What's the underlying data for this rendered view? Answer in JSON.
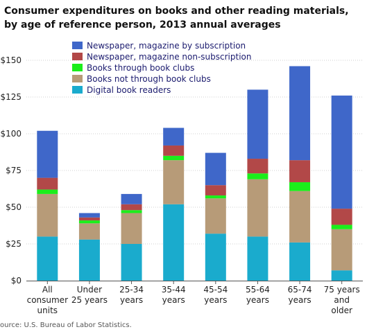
{
  "chart_data": {
    "type": "bar",
    "stacked": true,
    "title": "Consumer expenditures on books and other reading materials, by age of reference person, 2013 annual averages",
    "xlabel": "",
    "ylabel": "",
    "ylim": [
      0,
      150
    ],
    "y_ticks": [
      "$0",
      "$25",
      "$50",
      "$75",
      "$100",
      "$125",
      "$150"
    ],
    "y_tick_values": [
      0,
      25,
      50,
      75,
      100,
      125,
      150
    ],
    "grid": true,
    "legend_position": "top-left",
    "categories": [
      [
        "All",
        "consumer",
        "units"
      ],
      [
        "Under",
        "25 years"
      ],
      [
        "25-34",
        "years"
      ],
      [
        "35-44",
        "years"
      ],
      [
        "45-54",
        "years"
      ],
      [
        "55-64",
        "years"
      ],
      [
        "65-74",
        "years"
      ],
      [
        "75 years",
        "and",
        "older"
      ]
    ],
    "series": [
      {
        "name": "Digital book readers",
        "color": "#1aabcd",
        "values": [
          30,
          28,
          25,
          52,
          32,
          30,
          26,
          7
        ]
      },
      {
        "name": "Books not through book clubs",
        "color": "#b79b78",
        "values": [
          29,
          11,
          21,
          30,
          24,
          39,
          35,
          28
        ]
      },
      {
        "name": "Books through book clubs",
        "color": "#1bee1b",
        "values": [
          3,
          2,
          2,
          3,
          2,
          4,
          6,
          3
        ]
      },
      {
        "name": "Newspaper, magazine non-subscription",
        "color": "#b24848",
        "values": [
          8,
          2,
          4,
          7,
          7,
          10,
          15,
          11
        ]
      },
      {
        "name": "Newspaper, magazine by subscription",
        "color": "#3f67c9",
        "values": [
          32,
          3,
          7,
          12,
          22,
          47,
          64,
          77
        ]
      }
    ],
    "legend_order": [
      4,
      3,
      2,
      1,
      0
    ],
    "source": "ource: U.S. Bureau of Labor Statistics."
  }
}
